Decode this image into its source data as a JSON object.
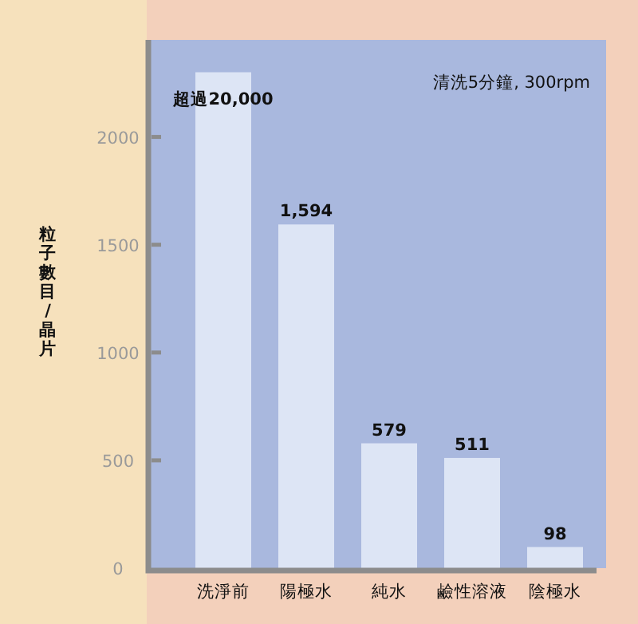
{
  "chart_data": {
    "type": "bar",
    "ylabel": "粒子數目/晶片",
    "annotations": [
      "清洗5分鐘, 300rpm"
    ],
    "categories": [
      "洗淨前",
      "陽極水",
      "純水",
      "鹼性溶液",
      "陰極水"
    ],
    "values": [
      2300,
      1594,
      579,
      511,
      98
    ],
    "value_labels": [
      "超過20,000",
      "1,594",
      "579",
      "511",
      "98"
    ],
    "color": "#dde5f5",
    "ylim": [
      0,
      2450
    ],
    "yticks": [
      0,
      500,
      1000,
      1500,
      2000
    ]
  }
}
